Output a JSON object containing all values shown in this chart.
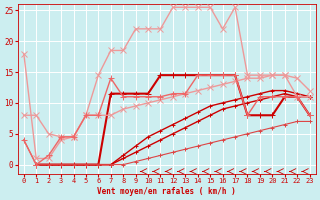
{
  "bg_color": "#cceef0",
  "grid_color": "#ffffff",
  "xlabel": "Vent moyen/en rafales ( km/h )",
  "xlabel_color": "#cc0000",
  "tick_color": "#cc0000",
  "xlim": [
    -0.5,
    23.5
  ],
  "ylim": [
    -1.5,
    26
  ],
  "yticks": [
    0,
    5,
    10,
    15,
    20,
    25
  ],
  "xticks": [
    0,
    1,
    2,
    3,
    4,
    5,
    6,
    7,
    8,
    9,
    10,
    11,
    12,
    13,
    14,
    15,
    16,
    17,
    18,
    19,
    20,
    21,
    22,
    23
  ],
  "lines": [
    {
      "x": [
        1,
        2,
        3,
        4,
        5,
        6,
        7,
        8,
        9,
        10,
        11,
        12,
        13,
        14,
        15,
        16,
        17,
        18,
        19,
        20,
        21,
        22,
        23
      ],
      "y": [
        0,
        0,
        0,
        0,
        0,
        0,
        11.5,
        11.5,
        11.5,
        11.5,
        14.5,
        14.5,
        14.5,
        14.5,
        14.5,
        14.5,
        14.5,
        8,
        8,
        8,
        11,
        11,
        8
      ],
      "color": "#cc0000",
      "lw": 1.5,
      "marker": "+",
      "ms": 4
    },
    {
      "x": [
        1,
        2,
        3,
        4,
        5,
        6,
        7,
        8,
        9,
        10,
        11,
        12,
        13,
        14,
        15,
        16,
        17,
        18,
        19,
        20,
        21,
        22,
        23
      ],
      "y": [
        0,
        0,
        0,
        0,
        0,
        0,
        0,
        1,
        2,
        3,
        4,
        5,
        6,
        7,
        8,
        9,
        9.5,
        10,
        10.5,
        11,
        11.5,
        11,
        11
      ],
      "color": "#cc0000",
      "lw": 1.0,
      "marker": "+",
      "ms": 3
    },
    {
      "x": [
        1,
        2,
        3,
        4,
        5,
        6,
        7,
        8,
        9,
        10,
        11,
        12,
        13,
        14,
        15,
        16,
        17,
        18,
        19,
        20,
        21,
        22,
        23
      ],
      "y": [
        0,
        0,
        0,
        0,
        0,
        0,
        0,
        1.5,
        3,
        4.5,
        5.5,
        6.5,
        7.5,
        8.5,
        9.5,
        10,
        10.5,
        11,
        11.5,
        12,
        12,
        11.5,
        11
      ],
      "color": "#cc0000",
      "lw": 1.0,
      "marker": "+",
      "ms": 3
    },
    {
      "x": [
        0,
        1,
        2,
        3,
        4,
        5,
        6,
        7,
        8,
        9,
        10,
        11,
        12,
        13,
        14,
        15,
        16,
        17,
        18,
        19,
        20,
        21,
        22,
        23
      ],
      "y": [
        4,
        0,
        0,
        0,
        0,
        0,
        0,
        0,
        0,
        0.5,
        1,
        1.5,
        2,
        2.5,
        3,
        3.5,
        4,
        4.5,
        5,
        5.5,
        6,
        6.5,
        7,
        7
      ],
      "color": "#dd4444",
      "lw": 0.8,
      "marker": "+",
      "ms": 3
    },
    {
      "x": [
        0,
        1,
        2,
        3,
        4,
        5,
        6,
        7,
        8,
        9,
        10,
        11,
        12,
        13,
        14,
        15,
        16,
        17,
        18,
        19,
        20,
        21,
        22,
        23
      ],
      "y": [
        8,
        8,
        5,
        4.5,
        4.5,
        8,
        8,
        8,
        9,
        9.5,
        10,
        10.5,
        11,
        11.5,
        12,
        12.5,
        13,
        13.5,
        14,
        14,
        14.5,
        14.5,
        14,
        12
      ],
      "color": "#ee9999",
      "lw": 1.0,
      "marker": "x",
      "ms": 4
    },
    {
      "x": [
        0,
        1,
        2,
        3,
        4,
        5,
        6,
        7,
        8,
        9,
        10,
        11,
        12,
        13,
        14,
        15,
        16,
        17,
        18,
        19,
        20,
        21,
        22,
        23
      ],
      "y": [
        18,
        1,
        1,
        4,
        4.5,
        8,
        14.5,
        18.5,
        18.5,
        22,
        22,
        22,
        25.5,
        25.5,
        25.5,
        25.5,
        22,
        25.5,
        14.5,
        14.5,
        14.5,
        14.5,
        11,
        11
      ],
      "color": "#ee9999",
      "lw": 1.0,
      "marker": "x",
      "ms": 4
    },
    {
      "x": [
        0,
        1,
        2,
        3,
        4,
        5,
        6,
        7,
        8,
        9,
        10,
        11,
        12,
        13,
        14,
        15,
        16,
        17,
        18,
        19,
        20,
        21,
        22,
        23
      ],
      "y": [
        4,
        0,
        1.5,
        4.5,
        4.5,
        8,
        8,
        14,
        11,
        11,
        11,
        11,
        11.5,
        11.5,
        14.5,
        14.5,
        14.5,
        14.5,
        8,
        11,
        11,
        11,
        11,
        8
      ],
      "color": "#ee6666",
      "lw": 1.0,
      "marker": "+",
      "ms": 4
    }
  ]
}
